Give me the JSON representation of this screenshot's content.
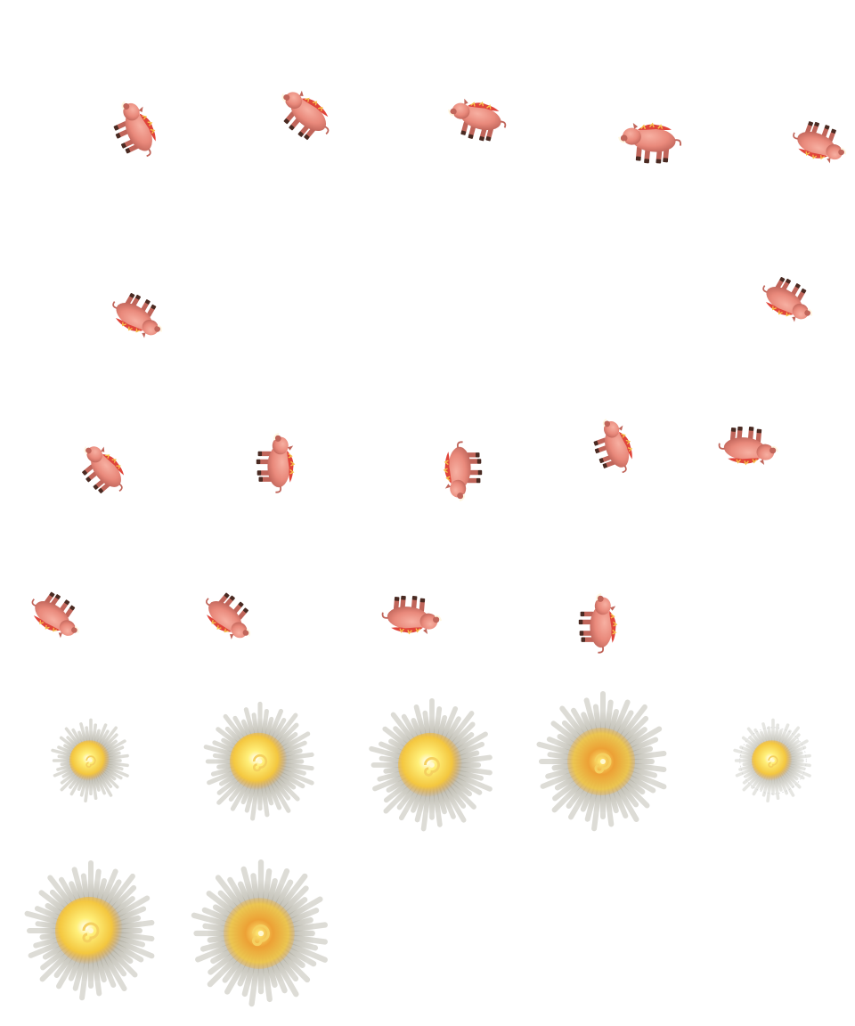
{
  "sheet": {
    "columns": 5,
    "rows": 6
  },
  "frames": [
    {
      "kind": "boar",
      "heading": "down-right"
    },
    {
      "kind": "boar",
      "heading": "down-right"
    },
    {
      "kind": "boar",
      "heading": "right"
    },
    {
      "kind": "boar",
      "heading": "right"
    },
    {
      "kind": "boar",
      "heading": "left-down"
    },
    {
      "kind": "boar",
      "heading": "left-down"
    },
    null,
    null,
    null,
    {
      "kind": "boar",
      "heading": "left-down"
    },
    {
      "kind": "boar",
      "heading": "down-right"
    },
    {
      "kind": "boar",
      "heading": "down"
    },
    {
      "kind": "boar",
      "heading": "up"
    },
    {
      "kind": "boar",
      "heading": "down-right"
    },
    {
      "kind": "boar",
      "heading": "left"
    },
    {
      "kind": "boar",
      "heading": "down-right"
    },
    {
      "kind": "boar",
      "heading": "down-right"
    },
    {
      "kind": "boar",
      "heading": "left"
    },
    {
      "kind": "boar",
      "heading": "down"
    },
    null,
    {
      "kind": "explosion",
      "intensity": "small"
    },
    {
      "kind": "explosion",
      "intensity": "medium"
    },
    {
      "kind": "explosion",
      "intensity": "large"
    },
    {
      "kind": "explosion",
      "intensity": "large-orange"
    },
    {
      "kind": "explosion",
      "intensity": "fading"
    },
    {
      "kind": "explosion",
      "intensity": "large"
    },
    {
      "kind": "explosion",
      "intensity": "large-orange"
    },
    null,
    null,
    null
  ],
  "colors": {
    "boar_body": "#e9897b",
    "boar_shadow": "#c0655a",
    "mane": "#e0443a",
    "mane_tip": "#f6c14a",
    "hoof": "#4a2a22",
    "tusk": "#fff6e0",
    "blast_core": "#fff07a",
    "blast_mid": "#f7c83a",
    "blast_orange": "#f0a030",
    "smoke": "#9d9a8a"
  }
}
